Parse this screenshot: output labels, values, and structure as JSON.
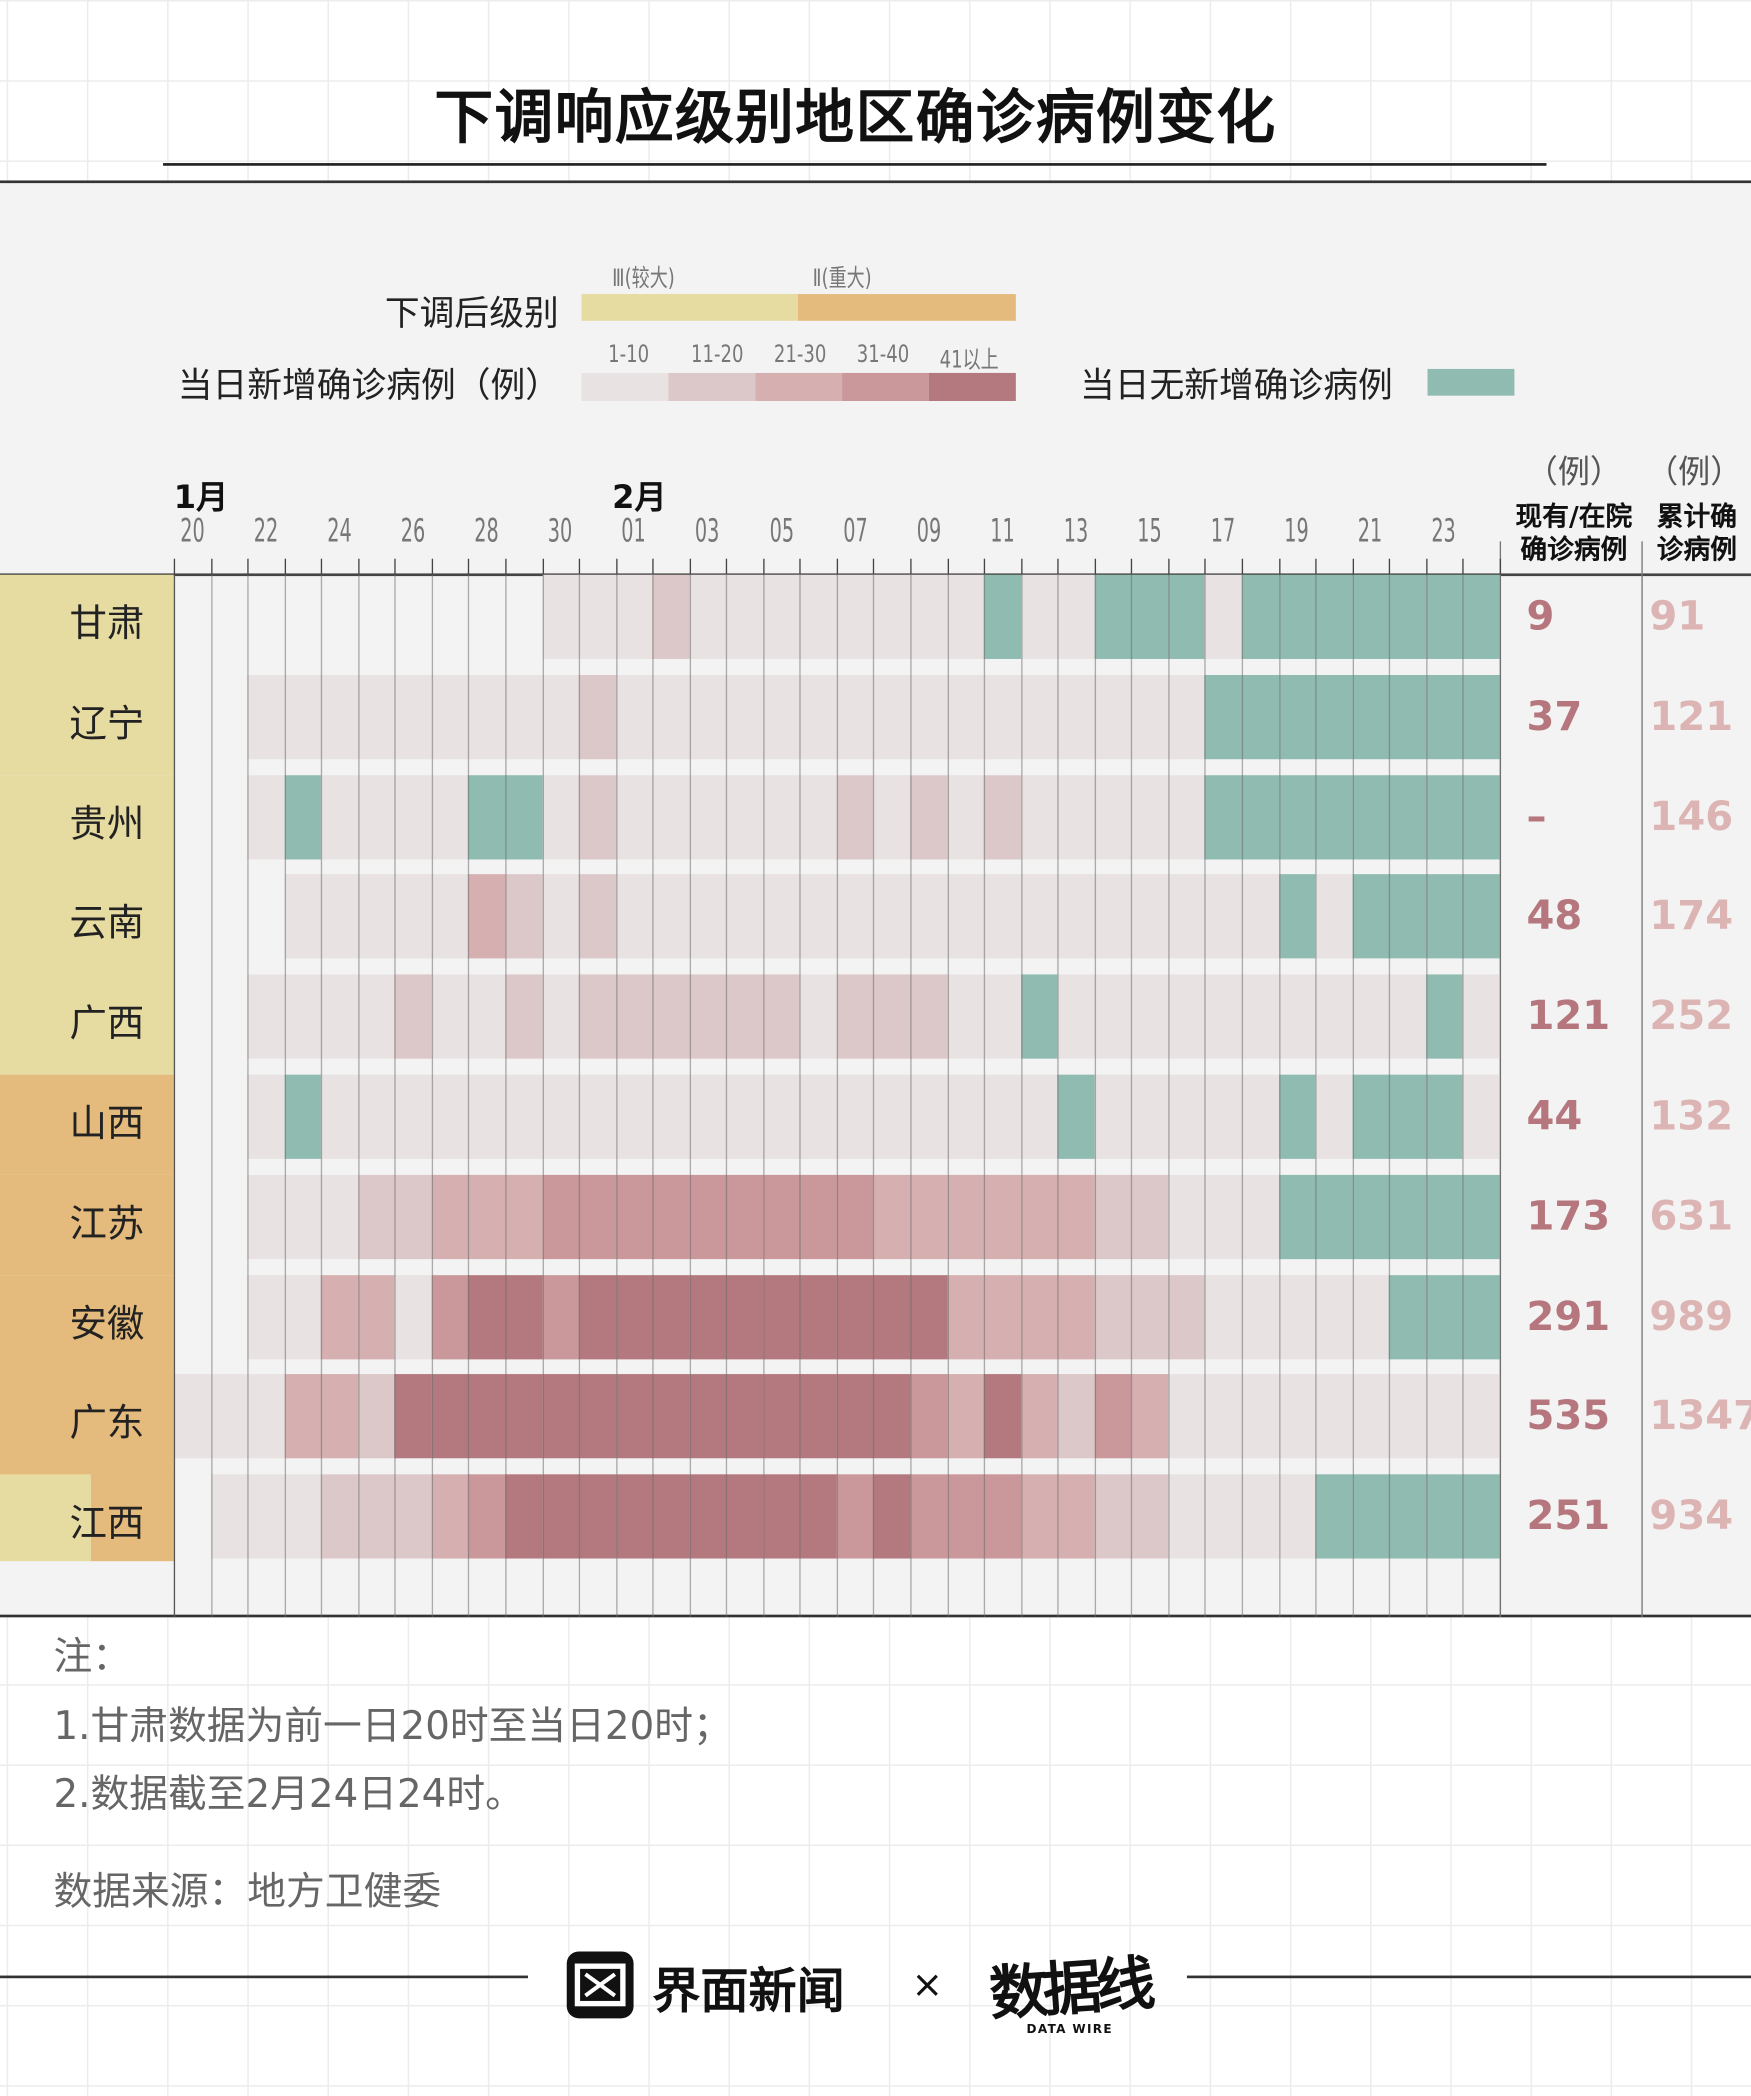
{
  "title": "下调响应级别地区确诊病例变化",
  "legend": {
    "level_label": "下调后级别",
    "level_items": [
      {
        "label": "Ⅲ(较大)",
        "color": "#e6dba1"
      },
      {
        "label": "Ⅱ(重大)",
        "color": "#e4bb7c"
      }
    ],
    "daily_label": "当日新增确诊病例（例）",
    "daily_items": [
      {
        "label": "1-10",
        "color": "#e8e2e2"
      },
      {
        "label": "11-20",
        "color": "#ddc8c9"
      },
      {
        "label": "21-30",
        "color": "#d6b0b1"
      },
      {
        "label": "31-40",
        "color": "#ca989b"
      },
      {
        "label": "41以上",
        "color": "#b3797e"
      }
    ],
    "none_label": "当日无新增确诊病例",
    "none_color": "#8fbbb1"
  },
  "chart_data": {
    "type": "heatmap",
    "title": "下调响应级别地区确诊病例变化",
    "months": [
      {
        "label": "1月",
        "start_index": 0
      },
      {
        "label": "2月",
        "start_index": 12
      }
    ],
    "x_tick_labels": [
      "20",
      "22",
      "24",
      "26",
      "28",
      "30",
      "01",
      "03",
      "05",
      "07",
      "09",
      "11",
      "13",
      "15",
      "17",
      "19",
      "21",
      "23"
    ],
    "x_range": [
      "1月20日",
      "2月24日"
    ],
    "value_encoding": "0 = 无数据, 1 = 1-10, 2 = 11-20, 3 = 21-30, 4 = 31-40, 5 = 41以上, -1 = 当日无新增确诊病例",
    "columns": {
      "unit": "（例）",
      "current_header": "现有/在院确诊病例",
      "total_header": "累计确诊病例"
    },
    "rows": [
      {
        "region": "甘肃",
        "level": [
          "III"
        ],
        "current": "9",
        "total": "91",
        "values": [
          0,
          0,
          0,
          0,
          0,
          0,
          0,
          0,
          0,
          0,
          1,
          1,
          1,
          2,
          1,
          1,
          1,
          1,
          1,
          1,
          1,
          1,
          -1,
          1,
          1,
          -1,
          -1,
          -1,
          1,
          -1,
          -1,
          -1,
          -1,
          -1,
          -1,
          -1
        ]
      },
      {
        "region": "辽宁",
        "level": [
          "III"
        ],
        "current": "37",
        "total": "121",
        "values": [
          0,
          0,
          1,
          1,
          1,
          1,
          1,
          1,
          1,
          1,
          1,
          2,
          1,
          1,
          1,
          1,
          1,
          1,
          1,
          1,
          1,
          1,
          1,
          1,
          1,
          1,
          1,
          1,
          -1,
          -1,
          -1,
          -1,
          -1,
          -1,
          -1,
          -1
        ]
      },
      {
        "region": "贵州",
        "level": [
          "III"
        ],
        "current": "–",
        "total": "146",
        "values": [
          0,
          0,
          1,
          -1,
          1,
          1,
          1,
          1,
          -1,
          -1,
          1,
          2,
          1,
          1,
          1,
          1,
          1,
          1,
          2,
          1,
          2,
          1,
          2,
          1,
          1,
          1,
          1,
          1,
          -1,
          -1,
          -1,
          -1,
          -1,
          -1,
          -1,
          -1
        ]
      },
      {
        "region": "云南",
        "level": [
          "III"
        ],
        "current": "48",
        "total": "174",
        "values": [
          0,
          0,
          0,
          1,
          1,
          1,
          1,
          1,
          3,
          2,
          1,
          2,
          1,
          1,
          1,
          1,
          1,
          1,
          1,
          1,
          1,
          1,
          1,
          1,
          1,
          1,
          1,
          1,
          1,
          1,
          -1,
          1,
          -1,
          -1,
          -1,
          -1
        ]
      },
      {
        "region": "广西",
        "level": [
          "III"
        ],
        "current": "121",
        "total": "252",
        "values": [
          0,
          0,
          1,
          1,
          1,
          1,
          2,
          1,
          1,
          2,
          1,
          2,
          2,
          2,
          2,
          2,
          2,
          1,
          2,
          2,
          2,
          1,
          1,
          -1,
          1,
          1,
          1,
          1,
          1,
          1,
          1,
          1,
          1,
          1,
          -1,
          1
        ]
      },
      {
        "region": "山西",
        "level": [
          "II"
        ],
        "current": "44",
        "total": "132",
        "values": [
          0,
          0,
          1,
          -1,
          1,
          1,
          1,
          1,
          1,
          1,
          1,
          1,
          1,
          1,
          1,
          1,
          1,
          1,
          1,
          1,
          1,
          1,
          1,
          1,
          -1,
          1,
          1,
          1,
          1,
          1,
          -1,
          1,
          -1,
          -1,
          -1,
          1
        ]
      },
      {
        "region": "江苏",
        "level": [
          "II"
        ],
        "current": "173",
        "total": "631",
        "values": [
          0,
          0,
          1,
          1,
          1,
          2,
          2,
          3,
          3,
          3,
          4,
          4,
          4,
          4,
          4,
          4,
          4,
          4,
          4,
          3,
          3,
          3,
          3,
          3,
          3,
          2,
          2,
          1,
          1,
          1,
          -1,
          -1,
          -1,
          -1,
          -1,
          -1
        ]
      },
      {
        "region": "安徽",
        "level": [
          "II"
        ],
        "current": "291",
        "total": "989",
        "values": [
          0,
          0,
          1,
          1,
          3,
          3,
          1,
          4,
          5,
          5,
          4,
          5,
          5,
          5,
          5,
          5,
          5,
          5,
          5,
          5,
          5,
          3,
          3,
          3,
          3,
          2,
          2,
          2,
          1,
          1,
          1,
          1,
          1,
          -1,
          -1,
          -1
        ]
      },
      {
        "region": "广东",
        "level": [
          "II"
        ],
        "current": "535",
        "total": "1347",
        "values": [
          1,
          1,
          1,
          3,
          3,
          2,
          5,
          5,
          5,
          5,
          5,
          5,
          5,
          5,
          5,
          5,
          5,
          5,
          5,
          5,
          4,
          3,
          5,
          3,
          2,
          4,
          3,
          1,
          1,
          1,
          1,
          1,
          1,
          1,
          1,
          1
        ]
      },
      {
        "region": "江西",
        "level": [
          "III",
          "II"
        ],
        "current": "251",
        "total": "934",
        "values": [
          0,
          1,
          1,
          1,
          2,
          2,
          2,
          3,
          4,
          5,
          5,
          5,
          5,
          5,
          5,
          5,
          5,
          5,
          4,
          5,
          4,
          4,
          4,
          3,
          3,
          2,
          2,
          1,
          1,
          1,
          1,
          -1,
          -1,
          -1,
          -1,
          -1
        ]
      }
    ]
  },
  "notes": {
    "heading": "注：",
    "items": [
      "1.甘肃数据为前一日20时至当日20时；",
      "2.数据截至2月24日24时。"
    ],
    "source": "数据来源：地方卫健委"
  },
  "footer": {
    "brand1": "界面新闻",
    "separator": "×",
    "brand2": "数据线",
    "brand2_sub": "DATA WIRE"
  }
}
